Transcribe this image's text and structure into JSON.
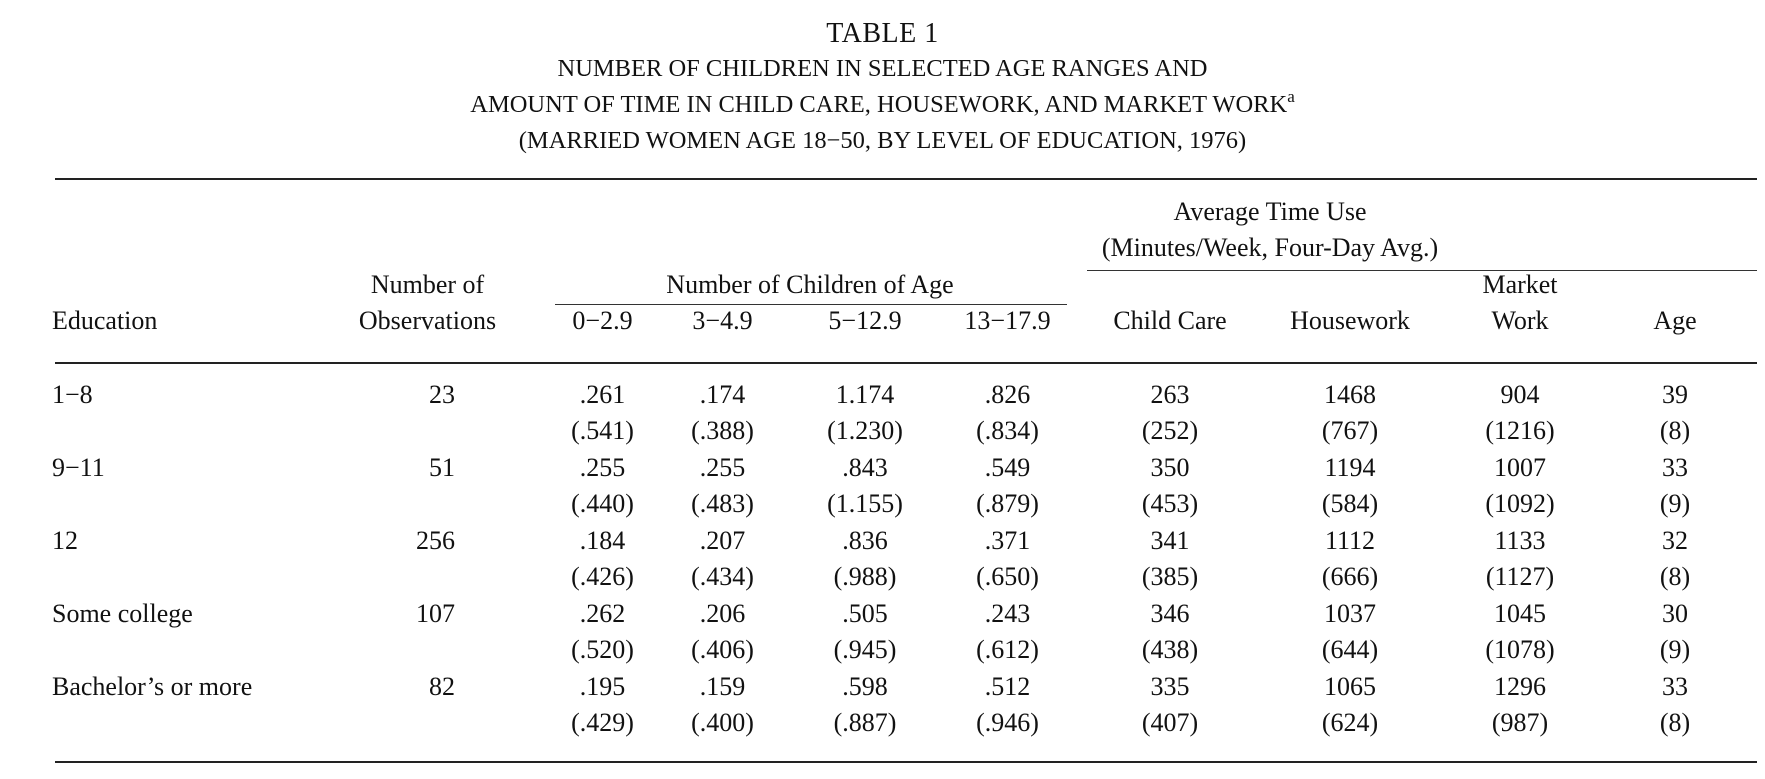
{
  "title": {
    "line1": "TABLE 1",
    "line2": "NUMBER OF CHILDREN IN SELECTED AGE RANGES AND",
    "line3": "AMOUNT OF TIME IN CHILD CARE, HOUSEWORK, AND MARKET WORK",
    "footnote_mark": "a",
    "line4": "(MARRIED WOMEN AGE 18−50, BY LEVEL OF EDUCATION, 1976)"
  },
  "headers": {
    "education": "Education",
    "observations_line1": "Number of",
    "observations_line2": "Observations",
    "children_group": "Number of Children of Age",
    "age_0_2": "0−2.9",
    "age_3_4": "3−4.9",
    "age_5_12": "5−12.9",
    "age_13_17": "13−17.9",
    "time_group_line1": "Average Time Use",
    "time_group_line2": "(Minutes/Week, Four-Day Avg.)",
    "child_care": "Child Care",
    "housework": "Housework",
    "market_line1": "Market",
    "market_line2": "Work",
    "age": "Age"
  },
  "rows": [
    {
      "education": "1−8",
      "n": "23",
      "means": [
        ".261",
        ".174",
        "1.174",
        ".826",
        "263",
        "1468",
        "904",
        "39"
      ],
      "sds": [
        "(.541)",
        "(.388)",
        "(1.230)",
        "(.834)",
        "(252)",
        "(767)",
        "(1216)",
        "(8)"
      ]
    },
    {
      "education": "9−11",
      "n": "51",
      "means": [
        ".255",
        ".255",
        ".843",
        ".549",
        "350",
        "1194",
        "1007",
        "33"
      ],
      "sds": [
        "(.440)",
        "(.483)",
        "(1.155)",
        "(.879)",
        "(453)",
        "(584)",
        "(1092)",
        "(9)"
      ]
    },
    {
      "education": "12",
      "n": "256",
      "means": [
        ".184",
        ".207",
        ".836",
        ".371",
        "341",
        "1112",
        "1133",
        "32"
      ],
      "sds": [
        "(.426)",
        "(.434)",
        "(.988)",
        "(.650)",
        "(385)",
        "(666)",
        "(1127)",
        "(8)"
      ]
    },
    {
      "education": "Some college",
      "n": "107",
      "means": [
        ".262",
        ".206",
        ".505",
        ".243",
        "346",
        "1037",
        "1045",
        "30"
      ],
      "sds": [
        "(.520)",
        "(.406)",
        "(.945)",
        "(.612)",
        "(438)",
        "(644)",
        "(1078)",
        "(9)"
      ]
    },
    {
      "education": "Bachelor’s or more",
      "n": "82",
      "means": [
        ".195",
        ".159",
        ".598",
        ".512",
        "335",
        "1065",
        "1296",
        "33"
      ],
      "sds": [
        "(.429)",
        "(.400)",
        "(.887)",
        "(.946)",
        "(407)",
        "(624)",
        "(987)",
        "(8)"
      ]
    }
  ]
}
